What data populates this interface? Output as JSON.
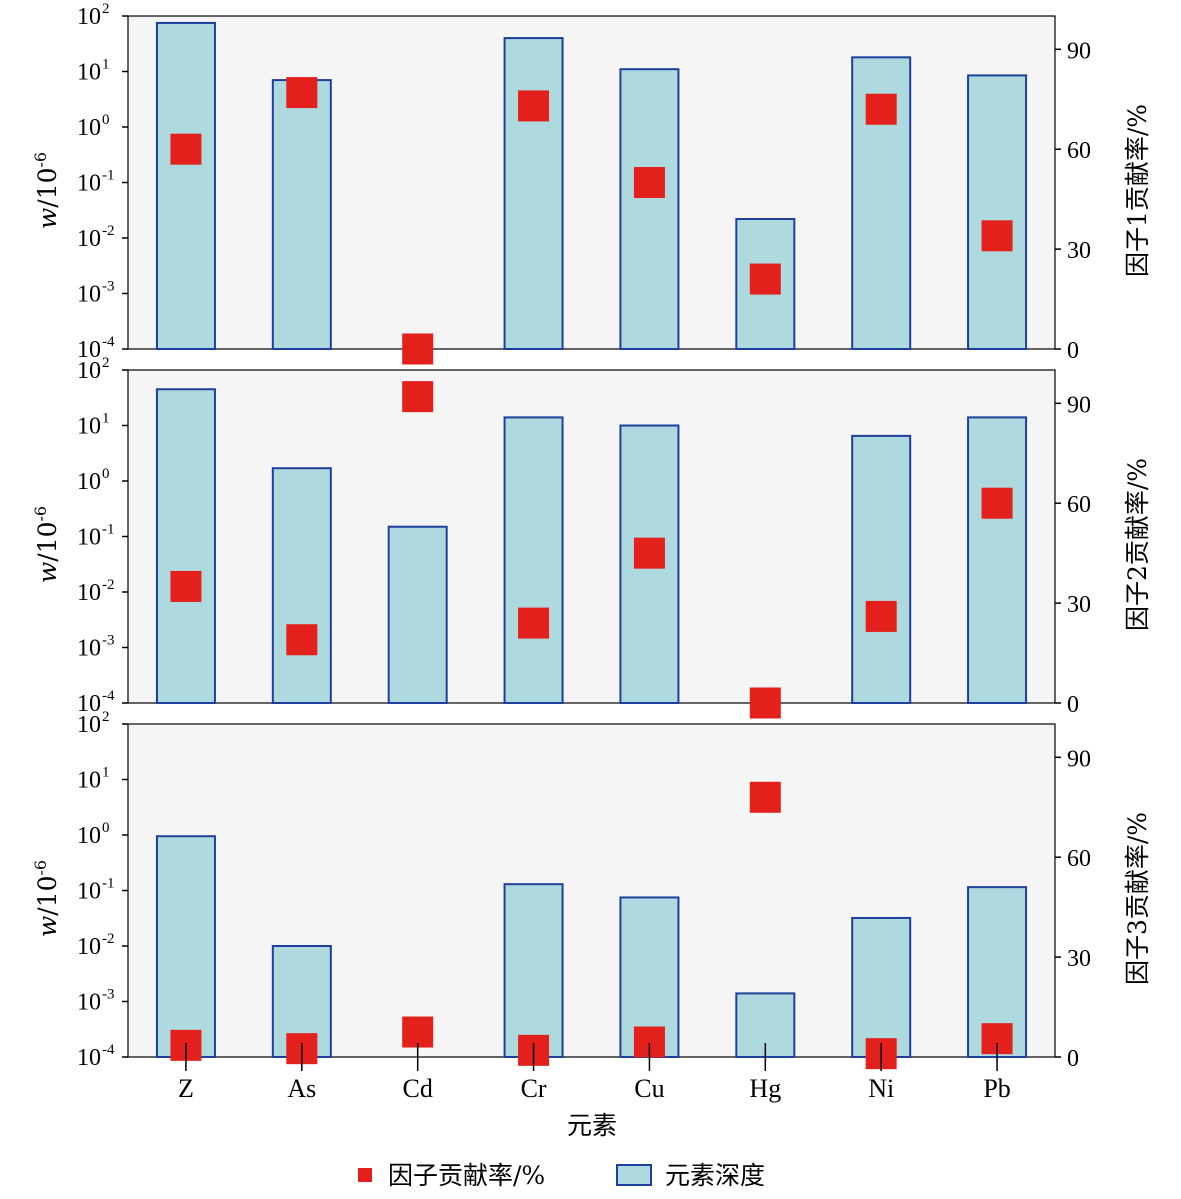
{
  "chart_data": {
    "type": "bar",
    "categories": [
      "Z",
      "As",
      "Cd",
      "Cr",
      "Cu",
      "Hg",
      "Ni",
      "Pb"
    ],
    "x_title": "元素",
    "left_axis": {
      "title_italic": "w",
      "title_rest": "/10",
      "title_sup": "-6",
      "scale": "log",
      "range": [
        0.0001,
        100
      ],
      "ticks": [
        {
          "base": "10",
          "exp": "2"
        },
        {
          "base": "10",
          "exp": "1"
        },
        {
          "base": "10",
          "exp": "0"
        },
        {
          "base": "10",
          "exp": "-1"
        },
        {
          "base": "10",
          "exp": "-2"
        },
        {
          "base": "10",
          "exp": "-3"
        },
        {
          "base": "10",
          "exp": "-4"
        }
      ]
    },
    "right_axis": {
      "range": [
        0,
        100
      ],
      "ticks": [
        "90",
        "60",
        "30",
        "0"
      ],
      "tick_values": [
        90,
        60,
        30,
        0
      ]
    },
    "legend": {
      "placement": "bottom",
      "marker_label": "因子贡献率/%",
      "bar_label": "元素深度"
    },
    "colors": {
      "bar_fill": "#aedadf",
      "bar_stroke": "#1f3f9c",
      "marker": "#e3201b",
      "plot_background": "#f5f5f5"
    },
    "panels": [
      {
        "right_title": "因子1贡献率/%",
        "bars": [
          75,
          7,
          null,
          40,
          11,
          0.022,
          18,
          8.5
        ],
        "markers": [
          60,
          77,
          0,
          73,
          50,
          21,
          72,
          34
        ]
      },
      {
        "right_title": "因子2贡献率/%",
        "bars": [
          45,
          1.7,
          0.15,
          14,
          10,
          null,
          6.5,
          14
        ],
        "markers": [
          35,
          19,
          92,
          24,
          45,
          0,
          26,
          60
        ]
      },
      {
        "right_title": "因子3贡献率/%",
        "bars": [
          0.95,
          0.01,
          null,
          0.13,
          0.075,
          0.0014,
          0.032,
          0.115
        ],
        "markers": [
          3.5,
          2.5,
          7.5,
          2,
          4.5,
          78,
          1,
          5.5
        ]
      }
    ]
  }
}
